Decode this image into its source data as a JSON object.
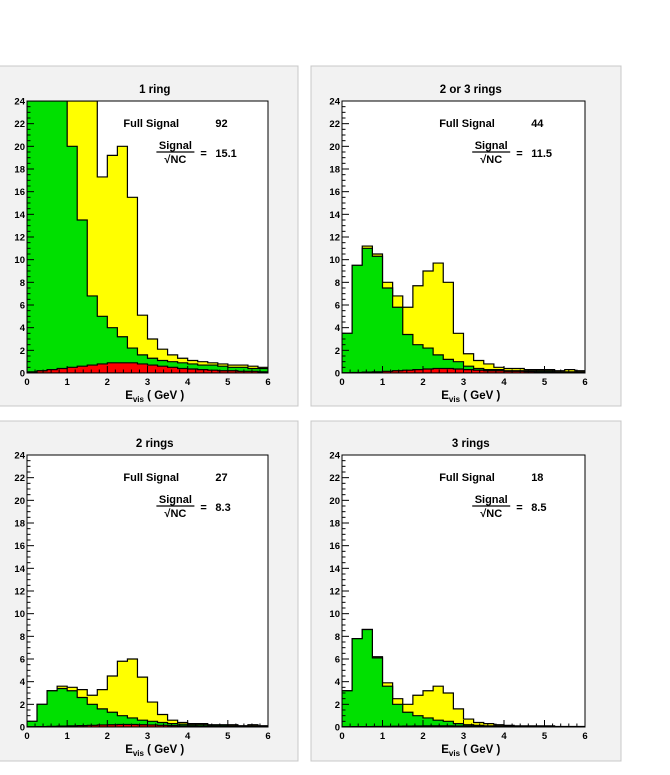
{
  "chart_data": [
    {
      "type": "area",
      "title": "1 ring",
      "xlabel_main": "E",
      "xlabel_sub": "vis",
      "xlabel_unit": "( GeV )",
      "xlim": [
        0,
        6
      ],
      "ylim": [
        0,
        24
      ],
      "xticks": [
        "0",
        "1",
        "2",
        "3",
        "4",
        "5",
        "6"
      ],
      "yticks": [
        "0",
        "2",
        "4",
        "6",
        "8",
        "10",
        "12",
        "14",
        "16",
        "18",
        "20",
        "22",
        "24"
      ],
      "annotation": {
        "full_signal_label": "Full Signal",
        "full_signal_value": "92",
        "ratio_num": "Signal",
        "ratio_den": "√NC",
        "equals": "=",
        "ratio_value": "15.1"
      },
      "bin_width": 0.25,
      "series": [
        {
          "key": "total",
          "color": "#ffff00",
          "values": [
            24,
            24,
            24,
            24,
            24,
            24,
            24,
            17.3,
            19.2,
            20,
            15.5,
            5.1,
            3,
            2.1,
            1.6,
            1.3,
            1.1,
            1,
            0.9,
            0.8,
            0.7,
            0.7,
            0.6,
            0.5
          ]
        },
        {
          "key": "green",
          "color": "#00e000",
          "values": [
            24,
            24,
            24,
            24,
            20,
            13.5,
            6.8,
            5,
            4,
            3.2,
            2.2,
            1.6,
            1.3,
            1.1,
            1,
            0.9,
            0.8,
            0.7,
            0.7,
            0.6,
            0.5,
            0.5,
            0.4,
            0.4
          ]
        },
        {
          "key": "red",
          "color": "#ff0000",
          "values": [
            0.1,
            0.2,
            0.3,
            0.4,
            0.5,
            0.6,
            0.7,
            0.8,
            0.9,
            0.9,
            0.9,
            0.8,
            0.7,
            0.6,
            0.5,
            0.4,
            0.35,
            0.3,
            0.25,
            0.2,
            0.2,
            0.15,
            0.15,
            0.1
          ]
        }
      ]
    },
    {
      "type": "area",
      "title": "2 or 3 rings",
      "xlabel_main": "E",
      "xlabel_sub": "vis",
      "xlabel_unit": "( GeV )",
      "xlim": [
        0,
        6
      ],
      "ylim": [
        0,
        24
      ],
      "xticks": [
        "0",
        "1",
        "2",
        "3",
        "4",
        "5",
        "6"
      ],
      "yticks": [
        "0",
        "2",
        "4",
        "6",
        "8",
        "10",
        "12",
        "14",
        "16",
        "18",
        "20",
        "22",
        "24"
      ],
      "annotation": {
        "full_signal_label": "Full Signal",
        "full_signal_value": "44",
        "ratio_num": "Signal",
        "ratio_den": "√NC",
        "equals": "=",
        "ratio_value": "11.5"
      },
      "bin_width": 0.25,
      "series": [
        {
          "key": "total",
          "color": "#ffff00",
          "values": [
            3.5,
            9.5,
            11.2,
            10.5,
            8,
            6.8,
            5.8,
            7.7,
            9,
            9.7,
            8,
            3.5,
            1.7,
            1.1,
            0.8,
            0.5,
            0.4,
            0.4,
            0.3,
            0.3,
            0.3,
            0.2,
            0.3,
            0.2
          ]
        },
        {
          "key": "green",
          "color": "#00e000",
          "values": [
            3.5,
            9.5,
            11,
            10.3,
            7.5,
            5.8,
            3.4,
            2.5,
            2.2,
            1.6,
            1.2,
            1,
            0.6,
            0.4,
            0.3,
            0.3,
            0.2,
            0.2,
            0.2,
            0.2,
            0.2,
            0.1,
            0.1,
            0.1
          ]
        },
        {
          "key": "red",
          "color": "#ff0000",
          "values": [
            0.02,
            0.05,
            0.08,
            0.1,
            0.15,
            0.2,
            0.25,
            0.3,
            0.35,
            0.4,
            0.4,
            0.35,
            0.3,
            0.25,
            0.2,
            0.2,
            0.15,
            0.15,
            0.12,
            0.1,
            0.1,
            0.08,
            0.07,
            0.05
          ]
        }
      ]
    },
    {
      "type": "area",
      "title": "2 rings",
      "xlabel_main": "E",
      "xlabel_sub": "vis",
      "xlabel_unit": "( GeV )",
      "xlim": [
        0,
        6
      ],
      "ylim": [
        0,
        24
      ],
      "xticks": [
        "0",
        "1",
        "2",
        "3",
        "4",
        "5",
        "6"
      ],
      "yticks": [
        "0",
        "2",
        "4",
        "6",
        "8",
        "10",
        "12",
        "14",
        "16",
        "18",
        "20",
        "22",
        "24"
      ],
      "annotation": {
        "full_signal_label": "Full Signal",
        "full_signal_value": "27",
        "ratio_num": "Signal",
        "ratio_den": "√NC",
        "equals": "=",
        "ratio_value": "8.3"
      },
      "bin_width": 0.25,
      "series": [
        {
          "key": "total",
          "color": "#ffff00",
          "values": [
            0.5,
            2,
            3.2,
            3.6,
            3.5,
            3.3,
            2.8,
            3.3,
            4.5,
            5.8,
            6,
            4.4,
            2.2,
            1.1,
            0.6,
            0.4,
            0.3,
            0.3,
            0.2,
            0.2,
            0.2,
            0.1,
            0.2,
            0.1
          ]
        },
        {
          "key": "green",
          "color": "#00e000",
          "values": [
            0.5,
            2,
            3.2,
            3.4,
            3.2,
            2.6,
            2,
            1.6,
            1.3,
            1,
            0.8,
            0.6,
            0.5,
            0.4,
            0.3,
            0.25,
            0.2,
            0.2,
            0.15,
            0.15,
            0.1,
            0.1,
            0.1,
            0.1
          ]
        },
        {
          "key": "red",
          "color": "#ff0000",
          "values": [
            0.02,
            0.04,
            0.06,
            0.08,
            0.1,
            0.12,
            0.15,
            0.18,
            0.2,
            0.22,
            0.22,
            0.2,
            0.18,
            0.15,
            0.12,
            0.1,
            0.08,
            0.07,
            0.06,
            0.05,
            0.05,
            0.04,
            0.03,
            0.03
          ]
        }
      ]
    },
    {
      "type": "area",
      "title": "3 rings",
      "xlabel_main": "E",
      "xlabel_sub": "vis",
      "xlabel_unit": "( GeV )",
      "xlim": [
        0,
        6
      ],
      "ylim": [
        0,
        24
      ],
      "xticks": [
        "0",
        "1",
        "2",
        "3",
        "4",
        "5",
        "6"
      ],
      "yticks": [
        "0",
        "2",
        "4",
        "6",
        "8",
        "10",
        "12",
        "14",
        "16",
        "18",
        "20",
        "22",
        "24"
      ],
      "annotation": {
        "full_signal_label": "Full Signal",
        "full_signal_value": "18",
        "ratio_num": "Signal",
        "ratio_den": "√NC",
        "equals": "=",
        "ratio_value": "8.5"
      },
      "bin_width": 0.25,
      "series": [
        {
          "key": "total",
          "color": "#ffff00",
          "values": [
            3.2,
            7.8,
            8.6,
            6.2,
            3.9,
            2.5,
            2,
            2.8,
            3.2,
            3.6,
            3,
            1.6,
            0.7,
            0.4,
            0.3,
            0.2,
            0.15,
            0.1,
            0.1,
            0.1,
            0.1,
            0.05,
            0.05,
            0.05
          ]
        },
        {
          "key": "green",
          "color": "#00e000",
          "values": [
            3.2,
            7.8,
            8.6,
            6.1,
            3.6,
            2,
            1.3,
            1,
            0.8,
            0.6,
            0.5,
            0.3,
            0.2,
            0.15,
            0.1,
            0.1,
            0.08,
            0.06,
            0.05,
            0.05,
            0.04,
            0.03,
            0.03,
            0.02
          ]
        },
        {
          "key": "red",
          "color": "#ff0000",
          "values": [
            0.02,
            0.03,
            0.04,
            0.05,
            0.06,
            0.07,
            0.08,
            0.09,
            0.1,
            0.1,
            0.1,
            0.09,
            0.08,
            0.07,
            0.06,
            0.05,
            0.04,
            0.04,
            0.03,
            0.03,
            0.02,
            0.02,
            0.02,
            0.02
          ]
        }
      ]
    }
  ]
}
